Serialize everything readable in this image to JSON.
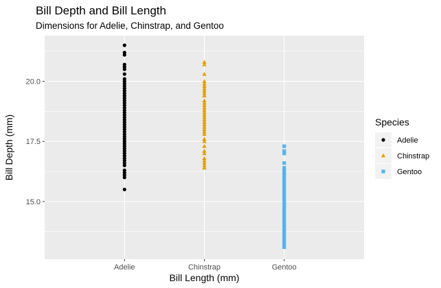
{
  "chart_data": {
    "type": "scatter",
    "title": "Bill Depth and Bill Length",
    "subtitle": "Dimensions for Adelie, Chinstrap, and Gentoo",
    "xlabel": "Bill Length (mm)",
    "ylabel": "Bill Depth (mm)",
    "categories": [
      "Adelie",
      "Chinstrap",
      "Gentoo"
    ],
    "ylim": [
      12.6,
      21.9
    ],
    "yticks": [
      15.0,
      17.5,
      20.0
    ],
    "ytick_labels": [
      "15.0",
      "17.5",
      "20.0"
    ],
    "grid": true,
    "legend": {
      "title": "Species",
      "position": "right"
    },
    "series": [
      {
        "name": "Adelie",
        "color": "#000000",
        "marker": "circle",
        "values": [
          15.5,
          16.0,
          16.1,
          16.2,
          16.3,
          16.5,
          16.6,
          16.7,
          16.8,
          16.9,
          17.0,
          17.1,
          17.2,
          17.3,
          17.4,
          17.5,
          17.6,
          17.7,
          17.8,
          17.9,
          18.0,
          18.1,
          18.2,
          18.3,
          18.4,
          18.5,
          18.6,
          18.7,
          18.8,
          18.9,
          19.0,
          19.1,
          19.2,
          19.3,
          19.4,
          19.5,
          19.6,
          19.7,
          19.8,
          19.9,
          20.0,
          20.1,
          20.3,
          20.5,
          20.6,
          20.7,
          21.1,
          21.2,
          21.5
        ]
      },
      {
        "name": "Chinstrap",
        "color": "#E69F00",
        "marker": "triangle",
        "values": [
          16.4,
          16.5,
          16.6,
          16.7,
          16.8,
          17.0,
          17.1,
          17.3,
          17.5,
          17.6,
          17.8,
          17.9,
          18.0,
          18.1,
          18.2,
          18.3,
          18.4,
          18.5,
          18.6,
          18.7,
          18.8,
          18.9,
          19.0,
          19.1,
          19.2,
          19.4,
          19.5,
          19.6,
          19.7,
          19.8,
          19.9,
          20.0,
          20.3,
          20.7,
          20.8
        ]
      },
      {
        "name": "Gentoo",
        "color": "#56B4E9",
        "marker": "square",
        "values": [
          13.1,
          13.2,
          13.3,
          13.4,
          13.5,
          13.6,
          13.7,
          13.8,
          13.9,
          14.0,
          14.1,
          14.2,
          14.3,
          14.4,
          14.5,
          14.6,
          14.7,
          14.8,
          14.9,
          15.0,
          15.1,
          15.2,
          15.3,
          15.4,
          15.5,
          15.6,
          15.7,
          15.8,
          15.9,
          16.0,
          16.1,
          16.2,
          16.3,
          16.4,
          16.6,
          17.0,
          17.1,
          17.3
        ]
      }
    ]
  }
}
